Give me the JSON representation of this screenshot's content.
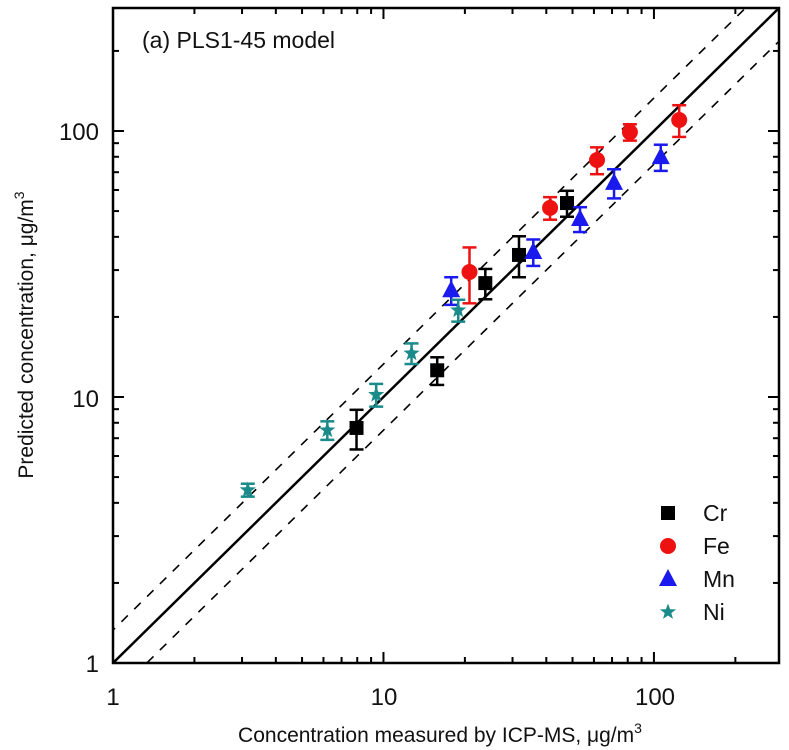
{
  "chart_data": {
    "type": "scatter",
    "title": "(a) PLS1-45 model",
    "xlabel": "Concentration measured by ICP-MS, μg/m",
    "xlabel_sup": "3",
    "ylabel": "Predicted concentration, μg/m",
    "ylabel_sup": "3",
    "xscale": "log",
    "yscale": "log",
    "xlim": [
      1,
      290
    ],
    "ylim": [
      1,
      290
    ],
    "xticks": [
      1,
      10,
      100
    ],
    "yticks": [
      1,
      10,
      100
    ],
    "xtick_labels": [
      "1",
      "10",
      "100"
    ],
    "ytick_labels": [
      "1",
      "10",
      "100"
    ],
    "grid": false,
    "legend_position": "bottom-right",
    "reference_lines": [
      {
        "name": "1:1 line",
        "style": "solid",
        "factor": 1.0
      },
      {
        "name": "upper bound",
        "style": "dashed",
        "factor": 1.33
      },
      {
        "name": "lower bound",
        "style": "dashed",
        "factor": 0.75
      }
    ],
    "series": [
      {
        "name": "Cr",
        "marker": "square",
        "color": "#000000",
        "points": [
          {
            "x": 7.95,
            "y": 7.65,
            "err_low": 1.3,
            "err_high": 1.3
          },
          {
            "x": 15.8,
            "y": 12.6,
            "err_low": 1.5,
            "err_high": 1.5
          },
          {
            "x": 23.8,
            "y": 26.8,
            "err_low": 3.5,
            "err_high": 3.5
          },
          {
            "x": 31.7,
            "y": 34.2,
            "err_low": 6.0,
            "err_high": 6.0
          },
          {
            "x": 47.7,
            "y": 53.6,
            "err_low": 6.0,
            "err_high": 6.0
          }
        ]
      },
      {
        "name": "Fe",
        "marker": "circle",
        "color": "#ee1111",
        "points": [
          {
            "x": 20.8,
            "y": 29.5,
            "err_low": 7.0,
            "err_high": 7.0
          },
          {
            "x": 41.3,
            "y": 51.4,
            "err_low": 5.0,
            "err_high": 5.0
          },
          {
            "x": 61.6,
            "y": 77.8,
            "err_low": 9.0,
            "err_high": 9.0
          },
          {
            "x": 81.5,
            "y": 99.0,
            "err_low": 7.0,
            "err_high": 7.0
          },
          {
            "x": 124,
            "y": 110,
            "err_low": 15,
            "err_high": 15
          }
        ]
      },
      {
        "name": "Mn",
        "marker": "triangle",
        "color": "#1a1aee",
        "points": [
          {
            "x": 17.8,
            "y": 25.2,
            "err_low": 3.0,
            "err_high": 3.0
          },
          {
            "x": 35.8,
            "y": 35.1,
            "err_low": 4.0,
            "err_high": 4.0
          },
          {
            "x": 53.3,
            "y": 46.7,
            "err_low": 5.0,
            "err_high": 5.0
          },
          {
            "x": 71.2,
            "y": 63.8,
            "err_low": 8.0,
            "err_high": 8.0
          },
          {
            "x": 106,
            "y": 79.8,
            "err_low": 9.0,
            "err_high": 9.0
          }
        ]
      },
      {
        "name": "Ni",
        "marker": "star",
        "color": "#1a8a8a",
        "points": [
          {
            "x": 3.15,
            "y": 4.47,
            "err_low": 0.25,
            "err_high": 0.25
          },
          {
            "x": 6.2,
            "y": 7.5,
            "err_low": 0.6,
            "err_high": 0.6
          },
          {
            "x": 9.4,
            "y": 10.2,
            "err_low": 1.0,
            "err_high": 1.0
          },
          {
            "x": 12.7,
            "y": 14.6,
            "err_low": 1.3,
            "err_high": 1.3
          },
          {
            "x": 18.9,
            "y": 21.2,
            "err_low": 2.0,
            "err_high": 2.0
          }
        ]
      }
    ]
  }
}
